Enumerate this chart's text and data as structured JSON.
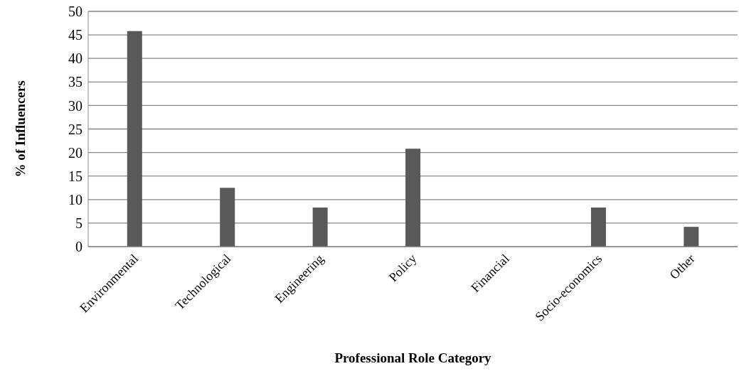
{
  "chart_data": {
    "type": "bar",
    "xlabel": "Professional Role Category",
    "ylabel": "% of Influencers",
    "categories": [
      "Environmental",
      "Technological",
      "Engineering",
      "Policy",
      "Financial",
      "Socio-economics",
      "Other"
    ],
    "values": [
      45.8,
      12.5,
      8.3,
      20.8,
      0,
      8.3,
      4.2
    ],
    "color": "#595959",
    "ylim": [
      0,
      50
    ],
    "yticks": [
      0,
      5,
      10,
      15,
      20,
      25,
      30,
      35,
      40,
      45,
      50
    ],
    "grid": "y"
  }
}
